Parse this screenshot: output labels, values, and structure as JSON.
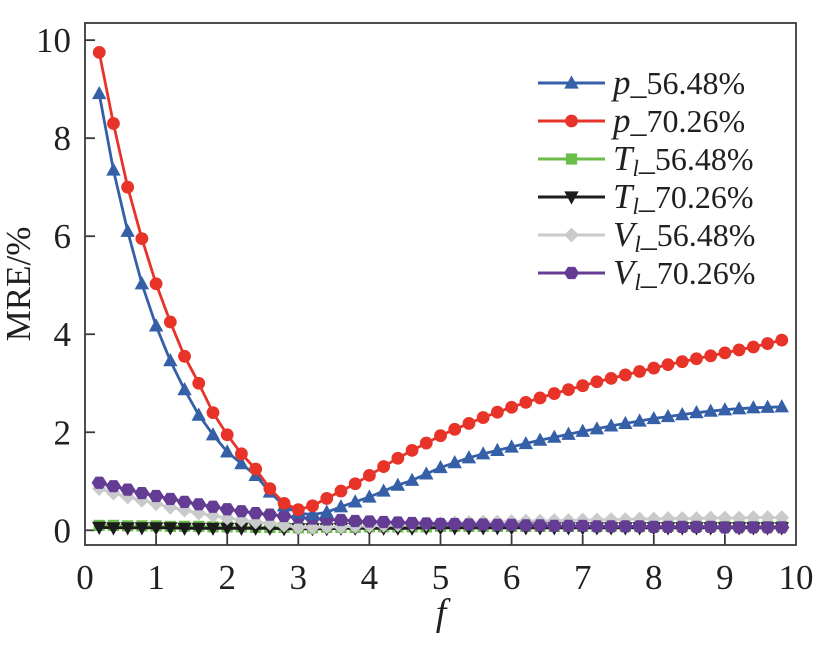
{
  "figure": {
    "background": "#ffffff",
    "axis_color": "#3a3a3a",
    "text_color": "#231f20"
  },
  "chart_data": {
    "type": "line",
    "title": "",
    "xlabel": "f",
    "ylabel": "MRE/%",
    "xlim": [
      0,
      10
    ],
    "ylim": [
      -0.3,
      10.35
    ],
    "xticks": [
      0,
      1,
      2,
      3,
      4,
      5,
      6,
      7,
      8,
      9,
      10
    ],
    "yticks": [
      0,
      2,
      4,
      6,
      8,
      10
    ],
    "grid": false,
    "legend_position": "upper right",
    "x": [
      0.2,
      0.4,
      0.6,
      0.8,
      1,
      1.2,
      1.4,
      1.6,
      1.8,
      2,
      2.2,
      2.4,
      2.6,
      2.8,
      3,
      3.2,
      3.4,
      3.6,
      3.8,
      4,
      4.2,
      4.4,
      4.6,
      4.8,
      5,
      5.2,
      5.4,
      5.6,
      5.8,
      6,
      6.2,
      6.4,
      6.6,
      6.8,
      7,
      7.2,
      7.4,
      7.6,
      7.8,
      8,
      8.2,
      8.4,
      8.6,
      8.8,
      9,
      9.2,
      9.4,
      9.6,
      9.8
    ],
    "series": [
      {
        "name": "p_56.48%",
        "legend": {
          "var": "p",
          "sub": "",
          "suffix": "_56.48%"
        },
        "color": "#3560A8",
        "marker": "triangle-up",
        "values": [
          8.91,
          7.35,
          6.1,
          5.03,
          4.17,
          3.46,
          2.87,
          2.35,
          1.95,
          1.6,
          1.36,
          1.12,
          0.78,
          0.5,
          0.35,
          0.32,
          0.37,
          0.48,
          0.58,
          0.68,
          0.8,
          0.92,
          1.02,
          1.15,
          1.28,
          1.38,
          1.48,
          1.56,
          1.63,
          1.7,
          1.77,
          1.84,
          1.9,
          1.96,
          2.02,
          2.07,
          2.13,
          2.18,
          2.23,
          2.28,
          2.32,
          2.36,
          2.4,
          2.43,
          2.46,
          2.48,
          2.5,
          2.51,
          2.52
        ]
      },
      {
        "name": "p_70.26%",
        "legend": {
          "var": "p",
          "sub": "",
          "suffix": "_70.26%"
        },
        "color": "#E73328",
        "marker": "circle",
        "values": [
          9.75,
          8.3,
          7.0,
          5.95,
          5.03,
          4.25,
          3.55,
          3.0,
          2.4,
          1.95,
          1.56,
          1.25,
          0.85,
          0.55,
          0.42,
          0.5,
          0.65,
          0.8,
          0.95,
          1.12,
          1.3,
          1.47,
          1.63,
          1.78,
          1.93,
          2.06,
          2.18,
          2.3,
          2.41,
          2.51,
          2.61,
          2.7,
          2.79,
          2.87,
          2.95,
          3.03,
          3.1,
          3.17,
          3.24,
          3.31,
          3.38,
          3.44,
          3.5,
          3.56,
          3.62,
          3.68,
          3.74,
          3.81,
          3.88
        ]
      },
      {
        "name": "T_l_56.48%",
        "legend": {
          "var": "T",
          "sub": "l",
          "suffix": "_56.48%"
        },
        "color": "#6CBE4A",
        "marker": "square",
        "values": [
          0.1,
          0.1,
          0.09,
          0.09,
          0.09,
          0.08,
          0.08,
          0.08,
          0.07,
          0.07,
          0.07,
          0.06,
          0.06,
          0.06,
          0.05,
          0.05,
          0.06,
          0.06,
          0.06,
          0.07,
          0.07,
          0.07,
          0.07,
          0.07,
          0.08,
          0.08,
          0.08,
          0.08,
          0.08,
          0.08,
          0.08,
          0.08,
          0.08,
          0.08,
          0.08,
          0.08,
          0.08,
          0.08,
          0.08,
          0.08,
          0.08,
          0.08,
          0.08,
          0.08,
          0.08,
          0.08,
          0.08,
          0.08,
          0.08
        ]
      },
      {
        "name": "T_l_70.26%",
        "legend": {
          "var": "T",
          "sub": "l",
          "suffix": "_70.26%"
        },
        "color": "#1C1C1C",
        "marker": "triangle-down",
        "values": [
          0.06,
          0.05,
          0.05,
          0.05,
          0.05,
          0.05,
          0.04,
          0.04,
          0.04,
          0.04,
          0.04,
          0.04,
          0.04,
          0.03,
          0.03,
          0.03,
          0.03,
          0.04,
          0.04,
          0.04,
          0.04,
          0.04,
          0.04,
          0.05,
          0.05,
          0.05,
          0.05,
          0.05,
          0.05,
          0.05,
          0.05,
          0.05,
          0.05,
          0.05,
          0.05,
          0.05,
          0.05,
          0.05,
          0.05,
          0.05,
          0.05,
          0.05,
          0.05,
          0.05,
          0.05,
          0.05,
          0.05,
          0.05,
          0.05
        ]
      },
      {
        "name": "V_l_56.48%",
        "legend": {
          "var": "V",
          "sub": "l",
          "suffix": "_56.48%"
        },
        "color": "#C9CACC",
        "marker": "diamond",
        "values": [
          0.85,
          0.76,
          0.68,
          0.61,
          0.54,
          0.47,
          0.41,
          0.35,
          0.3,
          0.25,
          0.21,
          0.17,
          0.14,
          0.1,
          0.06,
          0.06,
          0.07,
          0.07,
          0.08,
          0.09,
          0.1,
          0.11,
          0.12,
          0.13,
          0.14,
          0.15,
          0.16,
          0.17,
          0.17,
          0.18,
          0.19,
          0.19,
          0.2,
          0.2,
          0.21,
          0.21,
          0.22,
          0.22,
          0.23,
          0.23,
          0.24,
          0.24,
          0.24,
          0.25,
          0.25,
          0.25,
          0.26,
          0.26,
          0.26
        ]
      },
      {
        "name": "V_l_70.26%",
        "legend": {
          "var": "V",
          "sub": "l",
          "suffix": "_70.26%"
        },
        "color": "#643C94",
        "marker": "hexagon",
        "values": [
          0.97,
          0.9,
          0.83,
          0.76,
          0.7,
          0.64,
          0.58,
          0.53,
          0.48,
          0.43,
          0.39,
          0.35,
          0.32,
          0.29,
          0.26,
          0.24,
          0.22,
          0.21,
          0.19,
          0.18,
          0.17,
          0.16,
          0.15,
          0.14,
          0.13,
          0.13,
          0.12,
          0.12,
          0.11,
          0.11,
          0.1,
          0.1,
          0.09,
          0.09,
          0.09,
          0.08,
          0.08,
          0.08,
          0.08,
          0.07,
          0.07,
          0.07,
          0.07,
          0.07,
          0.06,
          0.06,
          0.06,
          0.06,
          0.06
        ]
      }
    ]
  }
}
